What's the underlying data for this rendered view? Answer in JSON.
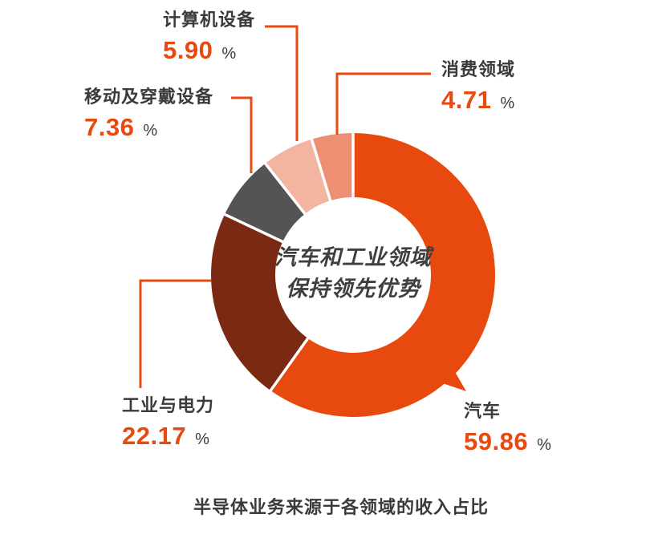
{
  "chart_data": {
    "type": "pie",
    "subtype": "donut",
    "title": "半导体业务来源于各领域的收入占比",
    "center_text": [
      "汽车和工业领域",
      "保持领先优势"
    ],
    "unit": "%",
    "start_angle_deg": 0,
    "direction": "clockwise",
    "legend_position": "callout-labels",
    "series": [
      {
        "key": "automotive",
        "name": "汽车",
        "value": 59.86,
        "display": "59.86",
        "color": "#E8490F"
      },
      {
        "key": "industrial-power",
        "name": "工业与电力",
        "value": 22.17,
        "display": "22.17",
        "color": "#7A2A12"
      },
      {
        "key": "mobile-wearable",
        "name": "移动及穿戴设备",
        "value": 7.36,
        "display": "7.36",
        "color": "#545454"
      },
      {
        "key": "computer-equipment",
        "name": "计算机设备",
        "value": 5.9,
        "display": "5.90",
        "color": "#F4B5A0"
      },
      {
        "key": "consumer",
        "name": "消费领域",
        "value": 4.71,
        "display": "4.71",
        "color": "#ED8F73"
      }
    ],
    "colors": {
      "accent": "#E8490F",
      "label_text": "#3A3A3A",
      "center_text": "#3F3F3F",
      "background": "#FFFFFF"
    }
  }
}
